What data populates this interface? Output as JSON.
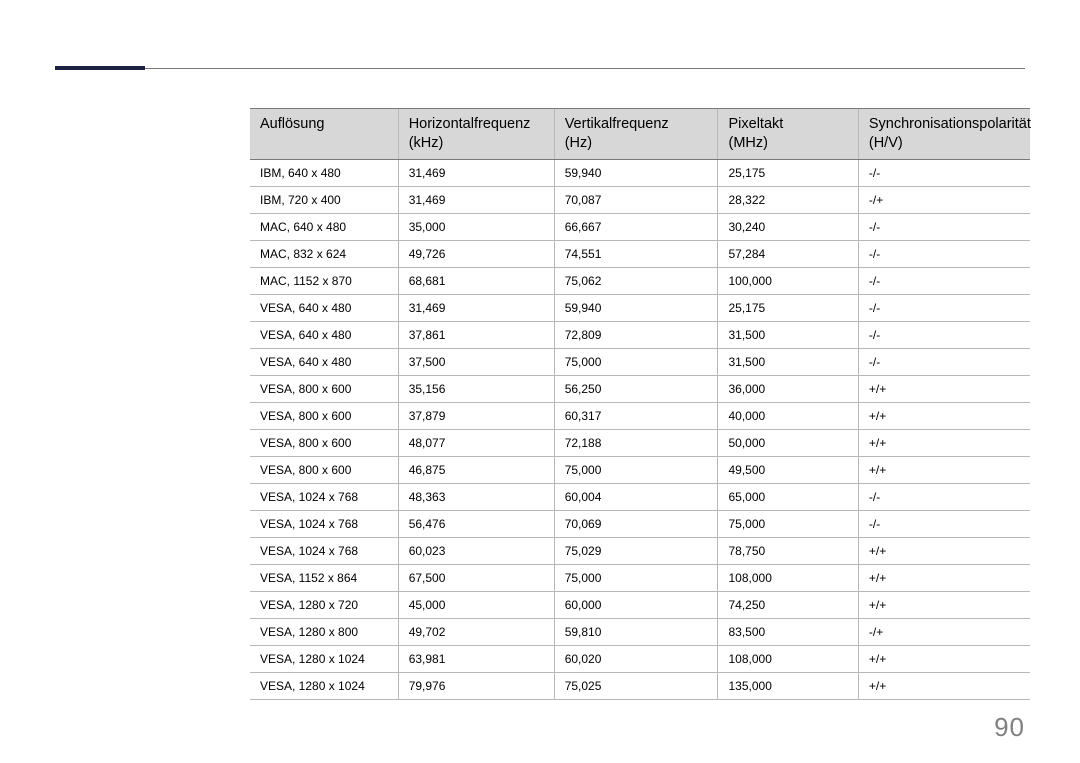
{
  "page_number": "90",
  "columns": [
    {
      "line1": "Auflösung",
      "line2": ""
    },
    {
      "line1": "Horizontalfrequenz",
      "line2": "(kHz)"
    },
    {
      "line1": "Vertikalfrequenz",
      "line2": "(Hz)"
    },
    {
      "line1": "Pixeltakt",
      "line2": "(MHz)"
    },
    {
      "line1": "Synchronisationspolarität",
      "line2": "(H/V)"
    }
  ],
  "rows": [
    [
      "IBM, 640 x 480",
      "31,469",
      "59,940",
      "25,175",
      "-/-"
    ],
    [
      "IBM, 720 x 400",
      "31,469",
      "70,087",
      "28,322",
      "-/+"
    ],
    [
      "MAC, 640 x 480",
      "35,000",
      "66,667",
      "30,240",
      "-/-"
    ],
    [
      "MAC, 832 x 624",
      "49,726",
      "74,551",
      "57,284",
      "-/-"
    ],
    [
      "MAC, 1152 x 870",
      "68,681",
      "75,062",
      "100,000",
      "-/-"
    ],
    [
      "VESA, 640 x 480",
      "31,469",
      "59,940",
      "25,175",
      "-/-"
    ],
    [
      "VESA, 640 x 480",
      "37,861",
      "72,809",
      "31,500",
      "-/-"
    ],
    [
      "VESA, 640 x 480",
      "37,500",
      "75,000",
      "31,500",
      "-/-"
    ],
    [
      "VESA, 800 x 600",
      "35,156",
      "56,250",
      "36,000",
      "+/+"
    ],
    [
      "VESA, 800 x 600",
      "37,879",
      "60,317",
      "40,000",
      "+/+"
    ],
    [
      "VESA, 800 x 600",
      "48,077",
      "72,188",
      "50,000",
      "+/+"
    ],
    [
      "VESA, 800 x 600",
      "46,875",
      "75,000",
      "49,500",
      "+/+"
    ],
    [
      "VESA, 1024 x 768",
      "48,363",
      "60,004",
      "65,000",
      "-/-"
    ],
    [
      "VESA, 1024 x 768",
      "56,476",
      "70,069",
      "75,000",
      "-/-"
    ],
    [
      "VESA, 1024 x 768",
      "60,023",
      "75,029",
      "78,750",
      "+/+"
    ],
    [
      "VESA, 1152 x 864",
      "67,500",
      "75,000",
      "108,000",
      "+/+"
    ],
    [
      "VESA, 1280 x 720",
      "45,000",
      "60,000",
      "74,250",
      "+/+"
    ],
    [
      "VESA, 1280 x 800",
      "49,702",
      "59,810",
      "83,500",
      "-/+"
    ],
    [
      "VESA, 1280 x 1024",
      "63,981",
      "60,020",
      "108,000",
      "+/+"
    ],
    [
      "VESA, 1280 x 1024",
      "79,976",
      "75,025",
      "135,000",
      "+/+"
    ]
  ]
}
